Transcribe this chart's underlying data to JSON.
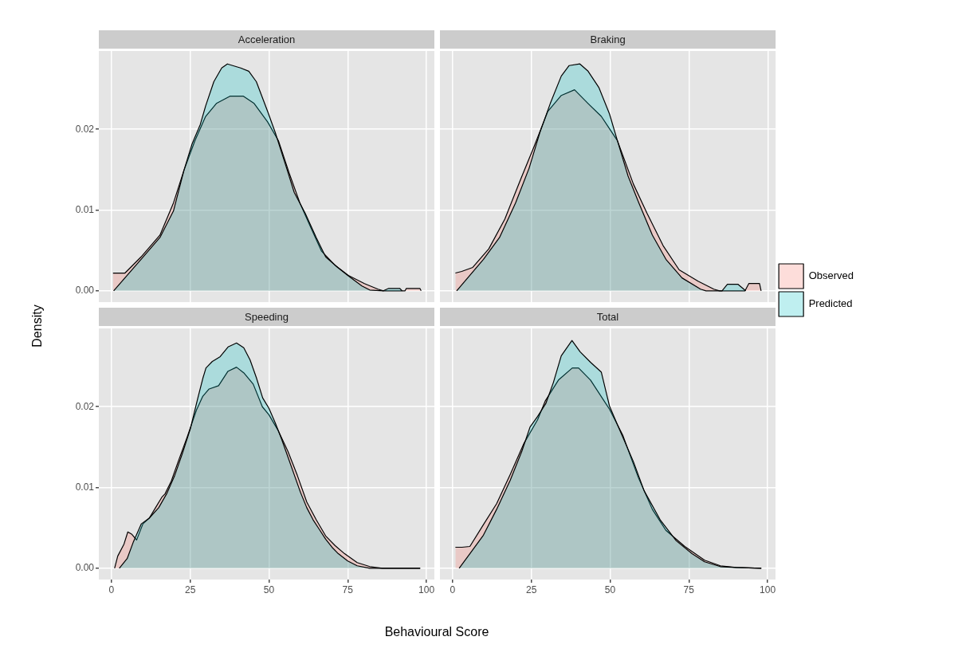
{
  "chart_data": [
    {
      "type": "area",
      "title": "Acceleration",
      "ylabel": "Density",
      "xlim": [
        -4,
        102.5
      ],
      "ylim": [
        -0.0014,
        0.0297
      ],
      "xticks": [
        0,
        25,
        50,
        75,
        100
      ],
      "yticks": [
        {
          "value": 0,
          "label": "0.00"
        },
        {
          "value": 0.01,
          "label": "0.01"
        },
        {
          "value": 0.02,
          "label": "0.02"
        }
      ],
      "grid": true,
      "tick_labels": "y",
      "series": [
        {
          "color": "#f8766d",
          "x": [
            0.5,
            4.3,
            9.4,
            15.4,
            19.7,
            23,
            26.5,
            29.9,
            33.3,
            37.6,
            41.9,
            45.3,
            49.6,
            53,
            56.4,
            59.8,
            63.2,
            66.7,
            70.9,
            75.2,
            80.3,
            84.6,
            86.3,
            93.2,
            93.6,
            97.9,
            98.3
          ],
          "values": [
            0.0022,
            0.0022,
            0.0042,
            0.0069,
            0.0109,
            0.0149,
            0.0186,
            0.0216,
            0.0232,
            0.0241,
            0.0241,
            0.0232,
            0.0209,
            0.0186,
            0.0146,
            0.0109,
            0.0079,
            0.0049,
            0.0032,
            0.0019,
            0.0009,
            0.0002,
            0,
            0,
            0.0003,
            0.0003,
            0
          ]
        },
        {
          "color": "#00bfc4",
          "x": [
            0.7,
            9.4,
            15.4,
            19.7,
            23,
            25.6,
            28.2,
            29.9,
            32.5,
            35,
            36.8,
            41,
            43.6,
            46,
            49.6,
            52,
            55.6,
            58,
            61.5,
            65,
            68,
            71.8,
            75,
            79.5,
            82,
            86.3,
            88,
            91.5,
            92.3
          ],
          "values": [
            0,
            0.0039,
            0.0066,
            0.0099,
            0.0149,
            0.0182,
            0.0206,
            0.0229,
            0.0259,
            0.0276,
            0.0281,
            0.0276,
            0.0272,
            0.0259,
            0.0222,
            0.0196,
            0.0152,
            0.0122,
            0.0096,
            0.0066,
            0.0042,
            0.0029,
            0.0019,
            0.0006,
            0.0001,
            0,
            0.0003,
            0.0003,
            0
          ]
        }
      ]
    },
    {
      "type": "area",
      "title": "Braking",
      "xlim": [
        -4,
        102.5
      ],
      "ylim": [
        -0.0014,
        0.0297
      ],
      "xticks": [
        0,
        25,
        50,
        75,
        100
      ],
      "yticks": [
        0,
        0.01,
        0.02
      ],
      "grid": true,
      "tick_labels": false,
      "legend": "right",
      "series": [
        {
          "name": "Observed",
          "color": "#f8766d",
          "x": [
            0.9,
            2.9,
            6.4,
            11.5,
            16.6,
            21.7,
            25.9,
            30.2,
            34.5,
            38.7,
            43,
            47.2,
            52.3,
            57.4,
            61.7,
            66.8,
            71.9,
            77.9,
            82.9,
            84.7,
            92.8,
            94,
            97.4,
            97.9
          ],
          "values": [
            0.0022,
            0.0024,
            0.0029,
            0.0052,
            0.0089,
            0.0139,
            0.0179,
            0.0222,
            0.0242,
            0.0249,
            0.0232,
            0.0216,
            0.0186,
            0.0132,
            0.0096,
            0.0056,
            0.0026,
            0.0012,
            0.0002,
            0,
            0,
            0.0009,
            0.0009,
            0
          ]
        },
        {
          "name": "Predicted",
          "color": "#00bfc4",
          "x": [
            1.3,
            9.8,
            14.9,
            20,
            24.3,
            27.7,
            31,
            34.5,
            37,
            40.4,
            43,
            46.4,
            49.8,
            52.3,
            55.7,
            59.1,
            63.4,
            67.7,
            72.8,
            78.7,
            80.4,
            85.5,
            87.2,
            90.6,
            93
          ],
          "values": [
            0,
            0.0039,
            0.0066,
            0.0109,
            0.0152,
            0.0196,
            0.0232,
            0.0266,
            0.0279,
            0.0281,
            0.0272,
            0.0252,
            0.0219,
            0.0186,
            0.0142,
            0.0109,
            0.0069,
            0.0039,
            0.0016,
            0.0002,
            0,
            0,
            0.0008,
            0.0008,
            0
          ]
        }
      ]
    },
    {
      "type": "area",
      "title": "Speeding",
      "xlabel": "Behavioural Score",
      "xlim": [
        -4,
        102.5
      ],
      "ylim": [
        -0.0014,
        0.0297
      ],
      "xticks": [
        0,
        25,
        50,
        75,
        100
      ],
      "yticks": [
        {
          "value": 0,
          "label": "0.00"
        },
        {
          "value": 0.01,
          "label": "0.01"
        },
        {
          "value": 0.02,
          "label": "0.02"
        }
      ],
      "grid": true,
      "series": [
        {
          "color": "#f8766d",
          "x": [
            1,
            2,
            4,
            5.2,
            6.5,
            8,
            10,
            12,
            14,
            16,
            17,
            19,
            21,
            24,
            27,
            29,
            31,
            34,
            37,
            39.7,
            42,
            45,
            47.9,
            50,
            53,
            56,
            59,
            62,
            65,
            68,
            71,
            74,
            78,
            82,
            86,
            98
          ],
          "values": [
            0,
            0.0015,
            0.003,
            0.0045,
            0.0042,
            0.0035,
            0.0055,
            0.0062,
            0.0075,
            0.0088,
            0.0092,
            0.0108,
            0.013,
            0.0162,
            0.0196,
            0.0213,
            0.0222,
            0.0226,
            0.0244,
            0.0249,
            0.0242,
            0.0228,
            0.02,
            0.019,
            0.017,
            0.0145,
            0.0115,
            0.0082,
            0.006,
            0.004,
            0.0028,
            0.0018,
            0.0007,
            0.0002,
            0,
            0
          ]
        },
        {
          "color": "#00bfc4",
          "x": [
            2.5,
            5,
            7,
            9.5,
            12,
            15,
            17.5,
            20,
            22.5,
            25,
            27.5,
            29,
            30,
            32,
            34.5,
            37,
            39.7,
            42,
            44,
            46,
            48,
            50,
            52,
            54,
            56,
            58,
            60,
            62,
            64,
            66,
            68,
            70,
            72,
            75,
            78,
            82,
            98
          ],
          "values": [
            0,
            0.0012,
            0.0033,
            0.0055,
            0.0062,
            0.0075,
            0.0092,
            0.0114,
            0.0142,
            0.0172,
            0.0212,
            0.0235,
            0.0248,
            0.0256,
            0.0262,
            0.0274,
            0.0279,
            0.0273,
            0.0258,
            0.0236,
            0.0211,
            0.0198,
            0.018,
            0.016,
            0.0138,
            0.0116,
            0.0094,
            0.0075,
            0.006,
            0.0048,
            0.0036,
            0.0026,
            0.0018,
            0.0009,
            0.0003,
            0,
            0
          ]
        }
      ]
    },
    {
      "type": "area",
      "title": "Total",
      "xlim": [
        -4,
        102.5
      ],
      "ylim": [
        -0.0014,
        0.0297
      ],
      "xticks": [
        0,
        25,
        50,
        75,
        100
      ],
      "yticks": [
        0,
        0.01,
        0.02
      ],
      "grid": true,
      "tick_labels": "x",
      "series": [
        {
          "color": "#f8766d",
          "x": [
            0.9,
            3,
            5.5,
            9.8,
            14,
            18.3,
            22.7,
            27,
            29.4,
            33.6,
            38,
            40,
            43.8,
            49.8,
            54,
            59,
            63.4,
            67.7,
            73.7,
            80,
            85,
            90,
            98
          ],
          "values": [
            0.0026,
            0.0026,
            0.0027,
            0.0054,
            0.008,
            0.0116,
            0.0155,
            0.0184,
            0.0207,
            0.0233,
            0.0248,
            0.0248,
            0.0233,
            0.0197,
            0.0165,
            0.0112,
            0.0073,
            0.0047,
            0.0027,
            0.001,
            0.0003,
            0.0001,
            0
          ]
        },
        {
          "color": "#00bfc4",
          "x": [
            2.1,
            5.5,
            9.8,
            14,
            18.3,
            22,
            24.6,
            27,
            29.6,
            32,
            34.5,
            37.9,
            40.5,
            43.8,
            47.2,
            49.8,
            52.3,
            57.4,
            60.8,
            65.9,
            71,
            76,
            80,
            85,
            90,
            98
          ],
          "values": [
            0,
            0.0018,
            0.0041,
            0.0073,
            0.0109,
            0.0145,
            0.0175,
            0.0188,
            0.0204,
            0.023,
            0.0263,
            0.0282,
            0.0268,
            0.0255,
            0.0243,
            0.0201,
            0.0178,
            0.0132,
            0.0096,
            0.006,
            0.0034,
            0.0018,
            0.0008,
            0.0002,
            0.0001,
            0
          ]
        }
      ]
    }
  ]
}
